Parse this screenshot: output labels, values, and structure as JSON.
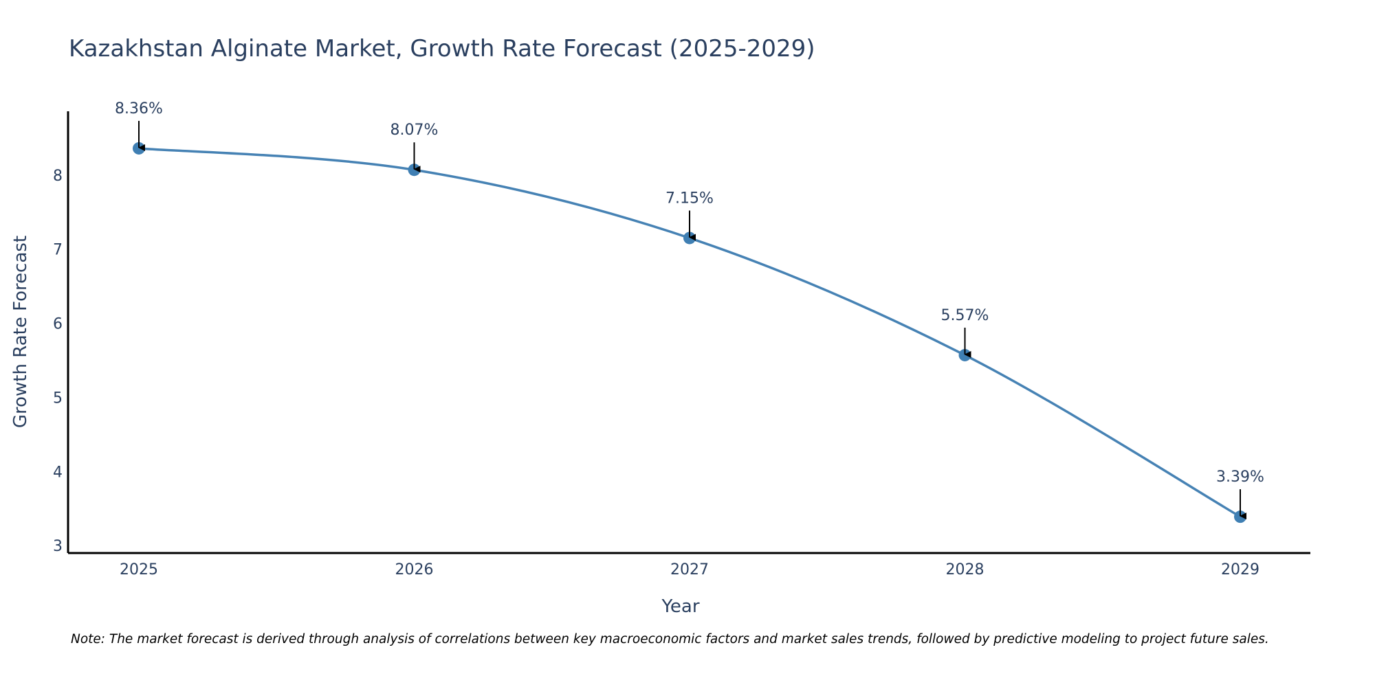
{
  "chart_data": {
    "type": "line",
    "title": "Kazakhstan Alginate Market, Growth Rate Forecast (2025-2029)",
    "xlabel": "Year",
    "ylabel": "Growth Rate Forecast",
    "categories": [
      "2025",
      "2026",
      "2027",
      "2028",
      "2029"
    ],
    "series": [
      {
        "name": "Growth Rate Forecast",
        "values": [
          8.36,
          8.07,
          7.15,
          5.57,
          3.39
        ]
      }
    ],
    "data_labels": [
      "8.36%",
      "8.07%",
      "7.15%",
      "5.57%",
      "3.39%"
    ],
    "yticks": [
      3,
      4,
      5,
      6,
      7,
      8
    ],
    "ylim": [
      2.9,
      8.86
    ],
    "grid": false,
    "legend": "none",
    "line_color": "#4682b4",
    "marker_color": "#3f7fb3",
    "text_color": "#2a3f5f"
  },
  "note": "Note: The market forecast is derived through analysis of correlations between key macroeconomic factors and market sales trends, followed by predictive modeling to project future sales."
}
